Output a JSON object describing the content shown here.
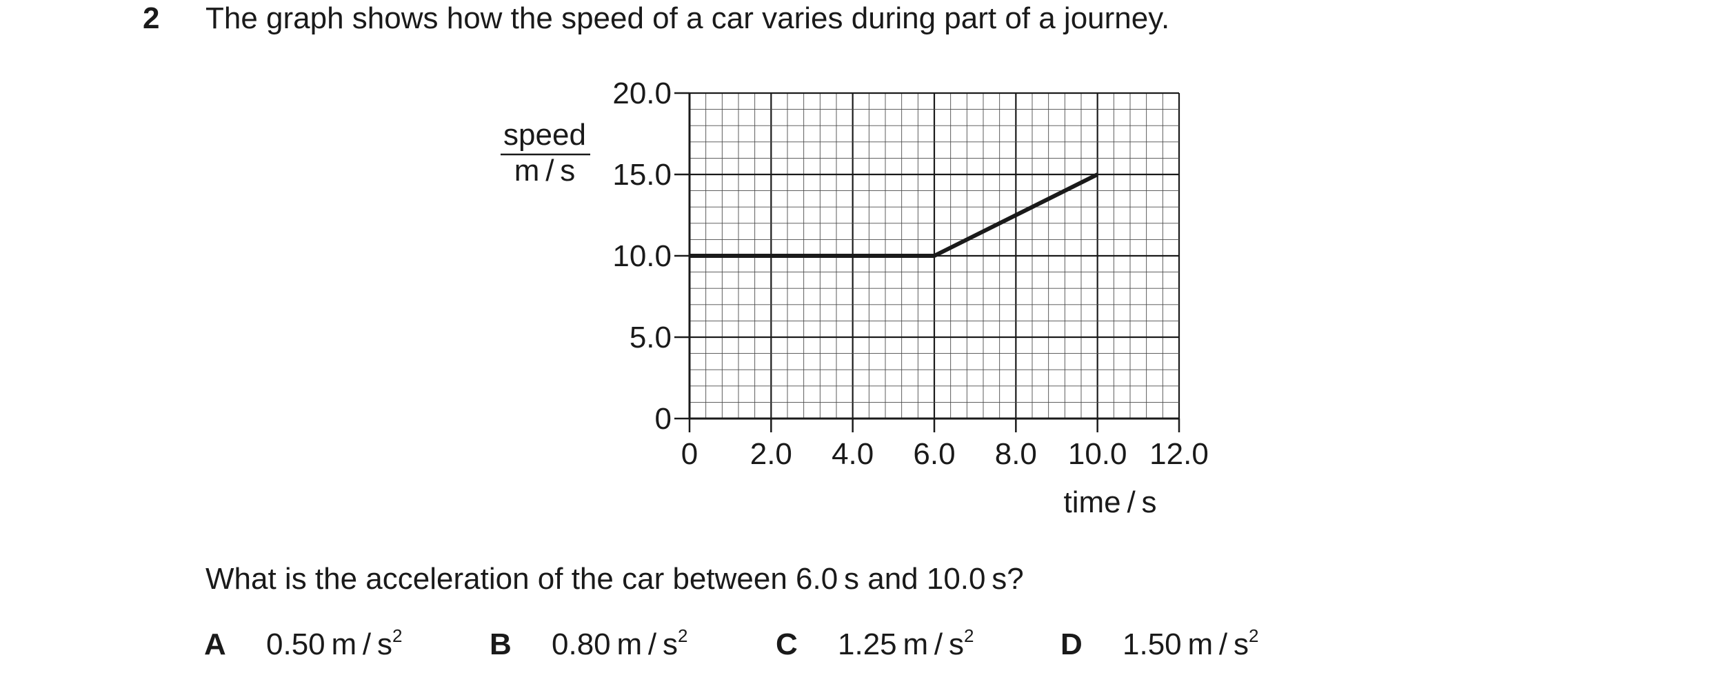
{
  "question": {
    "number": "2",
    "stem": "The graph shows how the speed of a car varies during part of a journey.",
    "sub_question": "What is the acceleration of the car between 6.0 s and 10.0 s?"
  },
  "options": [
    {
      "letter": "A",
      "value": "0.50 m / s",
      "sup": "2"
    },
    {
      "letter": "B",
      "value": "0.80 m / s",
      "sup": "2"
    },
    {
      "letter": "C",
      "value": "1.25 m / s",
      "sup": "2"
    },
    {
      "letter": "D",
      "value": "1.50 m / s",
      "sup": "2"
    }
  ],
  "chart_data": {
    "type": "line",
    "title": "",
    "xlabel": "time / s",
    "ylabel_top": "speed",
    "ylabel_bottom": "m / s",
    "xlim": [
      0,
      12
    ],
    "ylim": [
      0,
      20
    ],
    "x_ticks": [
      {
        "value": 0,
        "label": "0"
      },
      {
        "value": 2,
        "label": "2.0"
      },
      {
        "value": 4,
        "label": "4.0"
      },
      {
        "value": 6,
        "label": "6.0"
      },
      {
        "value": 8,
        "label": "8.0"
      },
      {
        "value": 10,
        "label": "10.0"
      },
      {
        "value": 12,
        "label": "12.0"
      }
    ],
    "y_ticks": [
      {
        "value": 0,
        "label": "0"
      },
      {
        "value": 5,
        "label": "5.0"
      },
      {
        "value": 10,
        "label": "10.0"
      },
      {
        "value": 15,
        "label": "15.0"
      },
      {
        "value": 20,
        "label": "20.0"
      }
    ],
    "grid": true,
    "x_minor_step": 0.4,
    "y_minor_step": 1,
    "x_major_step": 2,
    "y_major_step": 5,
    "series": [
      {
        "x": [
          0,
          6,
          10
        ],
        "y": [
          10,
          10,
          15
        ]
      }
    ]
  }
}
